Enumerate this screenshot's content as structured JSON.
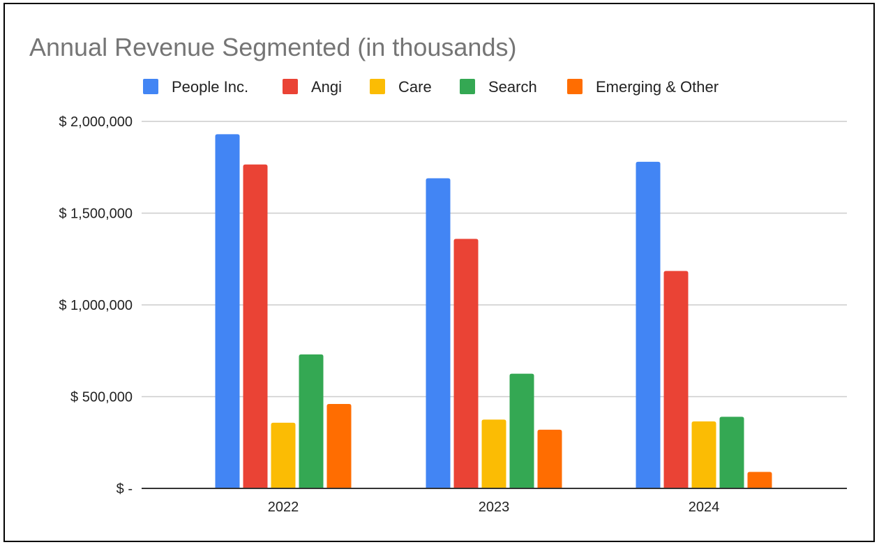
{
  "chart_data": {
    "type": "bar",
    "title": "Annual Revenue Segmented (in thousands)",
    "xlabel": "",
    "ylabel": "",
    "categories": [
      "2022",
      "2023",
      "2024"
    ],
    "series": [
      {
        "name": "People Inc.",
        "color": "#4285F4",
        "values": [
          1930000,
          1690000,
          1780000
        ]
      },
      {
        "name": "Angi",
        "color": "#EA4335",
        "values": [
          1765000,
          1360000,
          1185000
        ]
      },
      {
        "name": "Care",
        "color": "#FBBC04",
        "values": [
          358000,
          375000,
          365000
        ]
      },
      {
        "name": "Search",
        "color": "#34A853",
        "values": [
          730000,
          625000,
          390000
        ]
      },
      {
        "name": "Emerging & Other",
        "color": "#FF6D01",
        "values": [
          460000,
          320000,
          90000
        ]
      }
    ],
    "ylim": [
      0,
      2000000
    ],
    "yticks": [
      0,
      500000,
      1000000,
      1500000,
      2000000
    ],
    "ytick_labels": [
      "$ -",
      "$ 500,000",
      "$ 1,000,000",
      "$ 1,500,000",
      "$ 2,000,000"
    ],
    "grid": true,
    "legend_position": "top"
  }
}
